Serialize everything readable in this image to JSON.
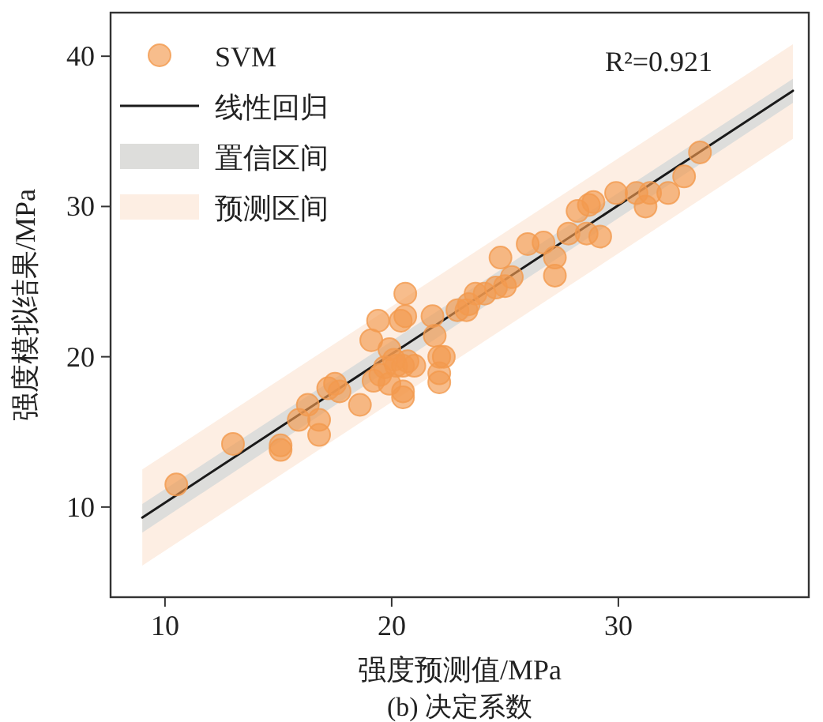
{
  "chart_data": {
    "type": "scatter",
    "title": "(b) 决定系数",
    "xlabel": "强度预测值/MPa",
    "ylabel": "强度模拟结果/MPa",
    "annotations": [
      "R²=0.921"
    ],
    "xlim": [
      7.6,
      38.4
    ],
    "ylim": [
      4,
      42.9
    ],
    "xticks": [
      10,
      20,
      30
    ],
    "yticks": [
      10,
      20,
      30,
      40
    ],
    "grid": false,
    "legend": "top left",
    "series": [
      {
        "name": "SVM",
        "marker": "circle",
        "color": "#f39a4e",
        "x": [
          10.5,
          13.0,
          15.1,
          15.1,
          15.9,
          16.3,
          16.8,
          16.8,
          17.2,
          17.5,
          17.7,
          18.6,
          19.1,
          19.2,
          19.4,
          19.5,
          19.7,
          19.9,
          19.9,
          20.1,
          20.2,
          20.4,
          20.5,
          20.5,
          20.5,
          20.6,
          20.6,
          20.7,
          21.0,
          21.8,
          21.9,
          22.1,
          22.1,
          22.1,
          22.3,
          22.9,
          23.3,
          23.4,
          23.7,
          24.1,
          24.6,
          24.8,
          25.0,
          25.3,
          26.0,
          26.7,
          27.2,
          27.2,
          27.8,
          28.2,
          28.6,
          28.7,
          28.9,
          29.2,
          29.9,
          30.8,
          31.2,
          31.4,
          32.2,
          32.9,
          33.6
        ],
        "values": [
          11.5,
          14.2,
          13.8,
          14.1,
          15.8,
          16.8,
          15.8,
          14.8,
          17.9,
          18.2,
          17.7,
          16.8,
          21.1,
          18.4,
          22.4,
          18.8,
          19.3,
          20.5,
          18.2,
          19.8,
          19.4,
          22.4,
          19.4,
          17.3,
          17.7,
          24.2,
          22.7,
          19.7,
          19.4,
          22.7,
          21.4,
          18.3,
          18.9,
          20.0,
          20.0,
          23.1,
          23.1,
          23.5,
          24.2,
          24.2,
          24.6,
          26.6,
          24.7,
          25.3,
          27.5,
          27.6,
          26.6,
          25.4,
          28.2,
          29.7,
          28.2,
          30.1,
          30.3,
          28.0,
          30.9,
          30.9,
          30.0,
          30.9,
          30.9,
          32.0,
          33.6
        ]
      },
      {
        "name": "线性回归",
        "type": "line",
        "color": "#1a1a1a",
        "x": [
          9.0,
          37.7
        ],
        "values": [
          9.3,
          37.7
        ]
      },
      {
        "name": "置信区间",
        "type": "line",
        "color": "#dddddb",
        "x": [
          9.0,
          37.7
        ],
        "values": [
          null,
          null
        ],
        "lower": [
          8.3,
          36.9
        ],
        "upper": [
          10.2,
          38.5
        ]
      },
      {
        "name": "预测区间",
        "type": "line",
        "color": "#fdeee3",
        "x": [
          9.0,
          37.7
        ],
        "values": [
          null,
          null
        ],
        "lower": [
          6.1,
          34.5
        ],
        "upper": [
          12.5,
          40.8
        ]
      }
    ]
  }
}
